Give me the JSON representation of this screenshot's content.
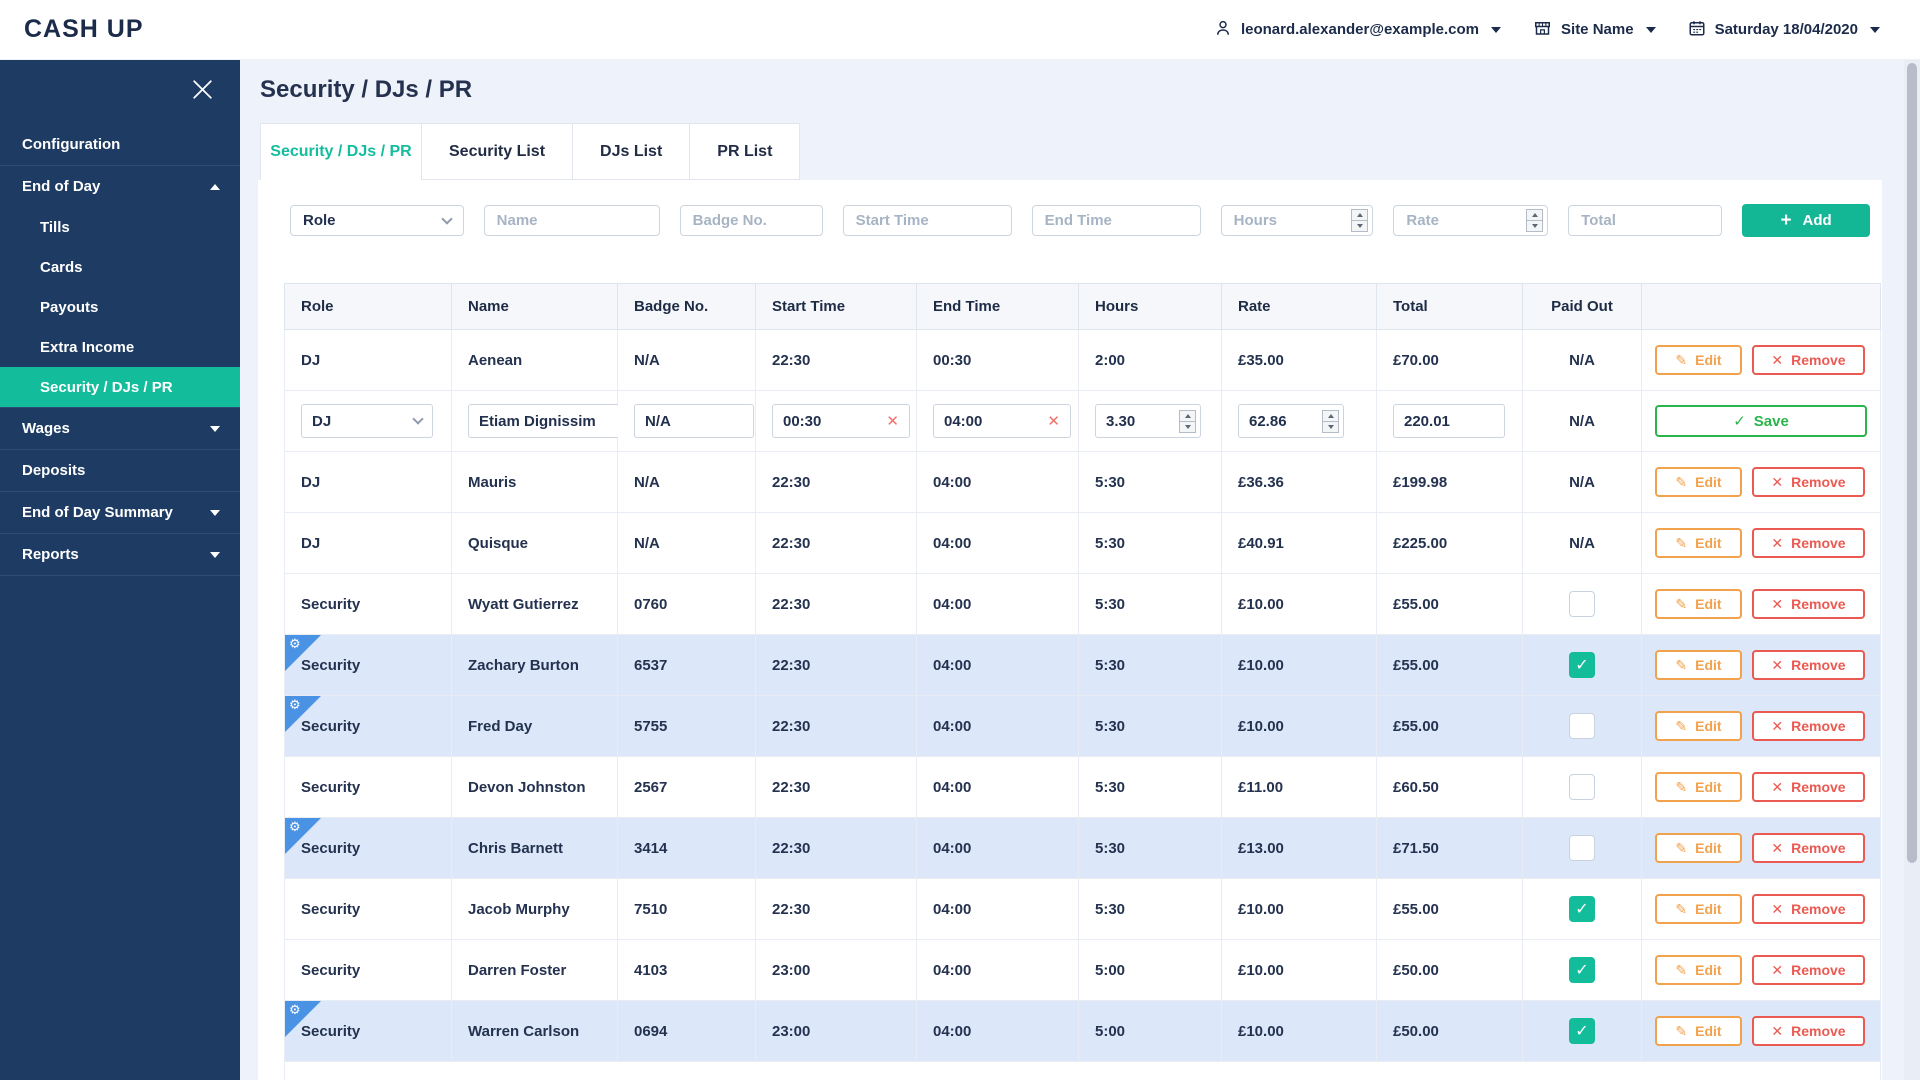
{
  "app": {
    "logo": "CASH UP"
  },
  "header": {
    "user_email": "leonard.alexander@example.com",
    "site_label": "Site Name",
    "date_label": "Saturday 18/04/2020"
  },
  "sidebar": {
    "groups": [
      {
        "items": [
          {
            "label": "Configuration",
            "level": "top"
          }
        ]
      },
      {
        "items": [
          {
            "label": "End of Day",
            "level": "top",
            "caret": "up"
          },
          {
            "label": "Tills",
            "level": "sub"
          },
          {
            "label": "Cards",
            "level": "sub"
          },
          {
            "label": "Payouts",
            "level": "sub"
          },
          {
            "label": "Extra Income",
            "level": "sub"
          },
          {
            "label": "Security / DJs / PR",
            "level": "sub",
            "active": true
          }
        ]
      },
      {
        "items": [
          {
            "label": "Wages",
            "level": "top",
            "caret": "down"
          }
        ]
      },
      {
        "items": [
          {
            "label": "Deposits",
            "level": "top"
          }
        ]
      },
      {
        "items": [
          {
            "label": "End of Day Summary",
            "level": "top",
            "caret": "down"
          }
        ]
      },
      {
        "items": [
          {
            "label": "Reports",
            "level": "top",
            "caret": "down"
          }
        ]
      }
    ]
  },
  "page": {
    "title": "Security / DJs / PR"
  },
  "tabs": [
    {
      "label": "Security / DJs / PR",
      "active": true
    },
    {
      "label": "Security List"
    },
    {
      "label": "DJs List"
    },
    {
      "label": "PR List"
    }
  ],
  "filter": {
    "role_value": "Role",
    "name_placeholder": "Name",
    "badge_placeholder": "Badge No.",
    "start_placeholder": "Start Time",
    "end_placeholder": "End Time",
    "hours_placeholder": "Hours",
    "rate_placeholder": "Rate",
    "total_placeholder": "Total",
    "add_label": "Add"
  },
  "actions": {
    "edit": "Edit",
    "remove": "Remove",
    "save": "Save"
  },
  "table": {
    "columns": [
      "Role",
      "Name",
      "Badge No.",
      "Start Time",
      "End Time",
      "Hours",
      "Rate",
      "Total",
      "Paid Out",
      ""
    ],
    "rows": [
      {
        "mode": "view",
        "role": "DJ",
        "name": "Aenean",
        "badge": "N/A",
        "start": "22:30",
        "end": "00:30",
        "hours": "2:00",
        "rate": "£35.00",
        "total": "£70.00",
        "paid": "na"
      },
      {
        "mode": "edit",
        "role": "DJ",
        "name": "Etiam Dignissim",
        "badge": "N/A",
        "start": "00:30",
        "end": "04:00",
        "hours": "3.30",
        "rate": "62.86",
        "total": "220.01",
        "paid": "na"
      },
      {
        "mode": "view",
        "role": "DJ",
        "name": "Mauris",
        "badge": "N/A",
        "start": "22:30",
        "end": "04:00",
        "hours": "5:30",
        "rate": "£36.36",
        "total": "£199.98",
        "paid": "na"
      },
      {
        "mode": "view",
        "role": "DJ",
        "name": "Quisque",
        "badge": "N/A",
        "start": "22:30",
        "end": "04:00",
        "hours": "5:30",
        "rate": "£40.91",
        "total": "£225.00",
        "paid": "na"
      },
      {
        "mode": "view",
        "role": "Security",
        "name": "Wyatt Gutierrez",
        "badge": "0760",
        "start": "22:30",
        "end": "04:00",
        "hours": "5:30",
        "rate": "£10.00",
        "total": "£55.00",
        "paid": "unchecked"
      },
      {
        "mode": "view",
        "role": "Security",
        "name": "Zachary Burton",
        "badge": "6537",
        "start": "22:30",
        "end": "04:00",
        "hours": "5:30",
        "rate": "£10.00",
        "total": "£55.00",
        "paid": "checked",
        "highlighted": true
      },
      {
        "mode": "view",
        "role": "Security",
        "name": "Fred Day",
        "badge": "5755",
        "start": "22:30",
        "end": "04:00",
        "hours": "5:30",
        "rate": "£10.00",
        "total": "£55.00",
        "paid": "unchecked",
        "highlighted": true
      },
      {
        "mode": "view",
        "role": "Security",
        "name": "Devon Johnston",
        "badge": "2567",
        "start": "22:30",
        "end": "04:00",
        "hours": "5:30",
        "rate": "£11.00",
        "total": "£60.50",
        "paid": "unchecked"
      },
      {
        "mode": "view",
        "role": "Security",
        "name": "Chris Barnett",
        "badge": "3414",
        "start": "22:30",
        "end": "04:00",
        "hours": "5:30",
        "rate": "£13.00",
        "total": "£71.50",
        "paid": "unchecked",
        "highlighted": true
      },
      {
        "mode": "view",
        "role": "Security",
        "name": "Jacob Murphy",
        "badge": "7510",
        "start": "22:30",
        "end": "04:00",
        "hours": "5:30",
        "rate": "£10.00",
        "total": "£55.00",
        "paid": "checked"
      },
      {
        "mode": "view",
        "role": "Security",
        "name": "Darren Foster",
        "badge": "4103",
        "start": "23:00",
        "end": "04:00",
        "hours": "5:00",
        "rate": "£10.00",
        "total": "£50.00",
        "paid": "checked"
      },
      {
        "mode": "view",
        "role": "Security",
        "name": "Warren Carlson",
        "badge": "0694",
        "start": "23:00",
        "end": "04:00",
        "hours": "5:00",
        "rate": "£10.00",
        "total": "£50.00",
        "paid": "checked",
        "highlighted": true
      }
    ],
    "na_label": "N/A"
  },
  "theme": {
    "sidebar_navy": "#1e3c63",
    "accent_teal": "#13bd9c",
    "highlight_row_blue": "#dce8fa",
    "badge_blue": "#4a92e4",
    "edit_orange": "#f2a24c",
    "remove_red": "#ea5a52",
    "save_green": "#2bb44a"
  }
}
